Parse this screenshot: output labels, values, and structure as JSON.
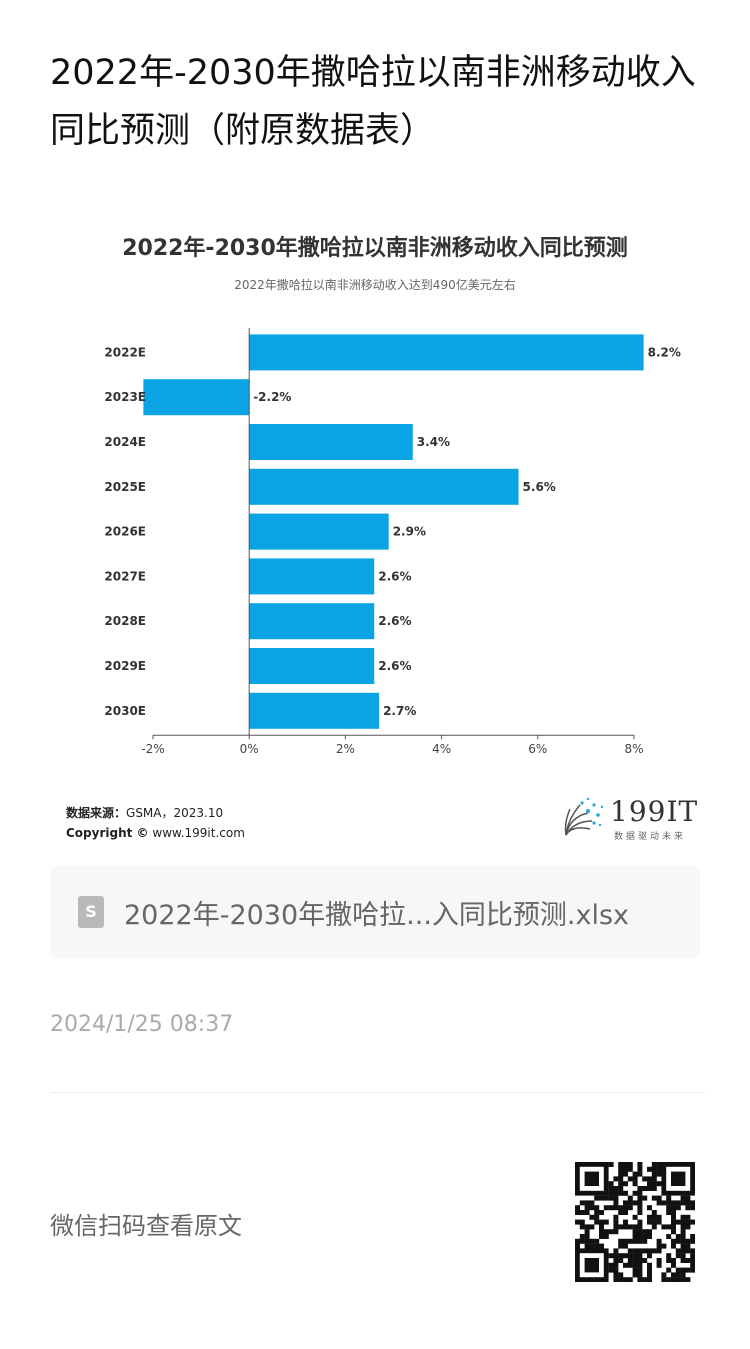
{
  "article": {
    "title": "2022年-2030年撒哈拉以南非洲移动收入同比预测（附原数据表）"
  },
  "chart_data": {
    "type": "bar",
    "orientation": "horizontal",
    "title": "2022年-2030年撒哈拉以南非洲移动收入同比预测",
    "subtitle": "2022年撒哈拉以南非洲移动收入达到490亿美元左右",
    "categories": [
      "2022E",
      "2023E",
      "2024E",
      "2025E",
      "2026E",
      "2027E",
      "2028E",
      "2029E",
      "2030E"
    ],
    "values": [
      8.2,
      -2.2,
      3.4,
      5.6,
      2.9,
      2.6,
      2.6,
      2.6,
      2.7
    ],
    "value_labels": [
      "8.2%",
      "-2.2%",
      "3.4%",
      "5.6%",
      "2.9%",
      "2.6%",
      "2.6%",
      "2.6%",
      "2.7%"
    ],
    "xlim": [
      -2,
      8
    ],
    "xticks": [
      -2,
      0,
      2,
      4,
      6,
      8
    ],
    "xtick_labels": [
      "-2%",
      "0%",
      "2%",
      "4%",
      "6%",
      "8%"
    ],
    "bar_color": "#0aa3e3",
    "grid": false
  },
  "source": {
    "label": "数据来源：",
    "value": "GSMA，2023.10",
    "copyright_label": "Copyright ©",
    "copyright_value": "www.199it.com"
  },
  "logo": {
    "name": "199IT",
    "tagline": "数据驱动未来"
  },
  "attachment": {
    "file_name": "2022年-2030年撒哈拉...入同比预测.xlsx",
    "icon_letter": "S",
    "icon": "spreadsheet-file-icon"
  },
  "meta": {
    "timestamp": "2024/1/25 08:37",
    "scan_prompt": "微信扫码查看原文"
  }
}
